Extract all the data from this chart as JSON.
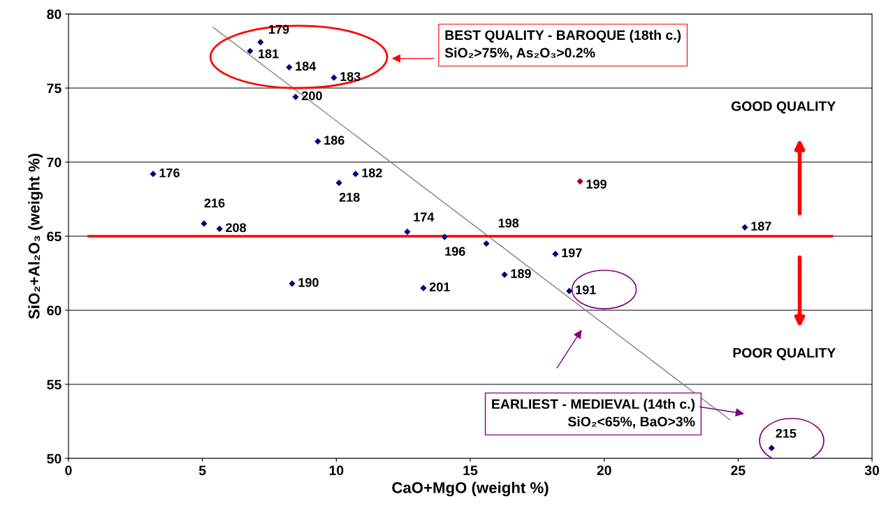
{
  "chart_data": {
    "type": "scatter",
    "xlabel": "CaO+MgO (weight %)",
    "ylabel": "SiO₂+Al₂O₃ (weight %)",
    "xlim": [
      0,
      30
    ],
    "ylim": [
      50,
      80
    ],
    "xticks": [
      0,
      5,
      10,
      15,
      20,
      25,
      30
    ],
    "yticks": [
      50,
      55,
      60,
      65,
      70,
      75,
      80
    ],
    "grid": "y",
    "series": [
      {
        "marker": "diamond",
        "x": [
          7.17,
          6.78,
          8.24,
          9.91,
          8.48,
          9.31,
          3.16,
          10.1,
          10.72,
          19.1,
          5.06,
          5.64,
          12.65,
          14.04,
          15.6,
          25.25,
          18.18,
          16.28,
          8.35,
          13.25,
          18.7,
          26.25
        ],
        "values": [
          78.1,
          77.5,
          76.4,
          75.7,
          74.4,
          71.4,
          69.2,
          68.6,
          69.2,
          68.7,
          65.85,
          65.5,
          65.3,
          64.95,
          64.5,
          65.6,
          63.8,
          62.4,
          61.8,
          61.5,
          61.3,
          50.7
        ],
        "colors": [
          "#00007f",
          "#00007f",
          "#00007f",
          "#00007f",
          "#00007f",
          "#00007f",
          "#00007f",
          "#00007f",
          "#00007f",
          "#a0001f",
          "#00007f",
          "#00007f",
          "#00007f",
          "#00007f",
          "#00007f",
          "#00007f",
          "#00007f",
          "#00007f",
          "#00007f",
          "#00007f",
          "#00007f",
          "#00007f"
        ]
      },
      {
        "type": "line",
        "x": [
          5.4,
          24.7
        ],
        "values": [
          79.1,
          52.6
        ],
        "color": "#808080"
      }
    ],
    "ref_lines": [
      {
        "axis": "y",
        "value": 65,
        "color": "#ff0000"
      }
    ],
    "annotations": [
      {
        "text": "179",
        "x": 7.17,
        "y": 78.1
      },
      {
        "text": "181",
        "x": 6.78,
        "y": 77.5
      },
      {
        "text": "184",
        "x": 8.24,
        "y": 76.4
      },
      {
        "text": "183",
        "x": 9.91,
        "y": 75.7
      },
      {
        "text": "200",
        "x": 8.48,
        "y": 74.4
      },
      {
        "text": "186",
        "x": 9.31,
        "y": 71.4
      },
      {
        "text": "176",
        "x": 3.16,
        "y": 69.2
      },
      {
        "text": "218",
        "x": 10.1,
        "y": 68.6
      },
      {
        "text": "182",
        "x": 10.72,
        "y": 69.2
      },
      {
        "text": "199",
        "x": 19.1,
        "y": 68.7
      },
      {
        "text": "216",
        "x": 5.06,
        "y": 65.85
      },
      {
        "text": "208",
        "x": 5.64,
        "y": 65.5
      },
      {
        "text": "174",
        "x": 12.65,
        "y": 65.3
      },
      {
        "text": "196",
        "x": 14.04,
        "y": 64.95
      },
      {
        "text": "198",
        "x": 15.6,
        "y": 64.5
      },
      {
        "text": "187",
        "x": 25.25,
        "y": 65.6
      },
      {
        "text": "197",
        "x": 18.18,
        "y": 63.8
      },
      {
        "text": "189",
        "x": 16.28,
        "y": 62.4
      },
      {
        "text": "190",
        "x": 8.35,
        "y": 61.8
      },
      {
        "text": "201",
        "x": 13.25,
        "y": 61.5
      },
      {
        "text": "191",
        "x": 18.7,
        "y": 61.3
      },
      {
        "text": "215",
        "x": 26.25,
        "y": 50.7
      },
      "BEST QUALITY - BAROQUE (18th c.)\nSiO₂>75%, As₂O₃>0.2%",
      "GOOD QUALITY",
      "POOR QUALITY",
      "EARLIEST - MEDIEVAL (14th c.)\nSiO₂<65%, BaO>3%"
    ]
  }
}
